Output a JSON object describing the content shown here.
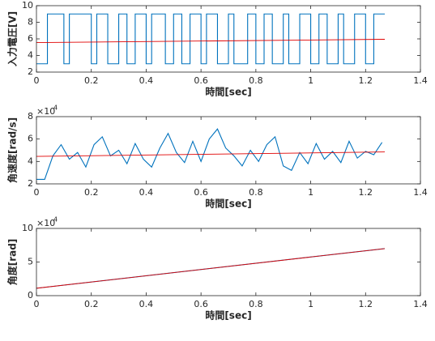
{
  "chart_data": [
    {
      "type": "line",
      "xlabel": "時間[sec]",
      "ylabel": "入力電圧[V]",
      "xlim": [
        0,
        1.4
      ],
      "xticks": [
        0,
        0.2,
        0.4,
        0.6,
        0.8,
        1,
        1.2,
        1.4
      ],
      "ylim": [
        2,
        10
      ],
      "yticks": [
        2,
        4,
        6,
        8,
        10
      ],
      "series": [
        {
          "color": "#0072bd",
          "x": [
            0,
            0.04,
            0.04,
            0.1,
            0.1,
            0.12,
            0.12,
            0.2,
            0.2,
            0.22,
            0.22,
            0.26,
            0.26,
            0.3,
            0.3,
            0.33,
            0.33,
            0.36,
            0.36,
            0.4,
            0.4,
            0.42,
            0.42,
            0.47,
            0.47,
            0.5,
            0.5,
            0.53,
            0.53,
            0.56,
            0.56,
            0.6,
            0.6,
            0.62,
            0.62,
            0.66,
            0.66,
            0.7,
            0.7,
            0.72,
            0.72,
            0.77,
            0.77,
            0.8,
            0.8,
            0.83,
            0.83,
            0.86,
            0.86,
            0.9,
            0.9,
            0.92,
            0.92,
            0.96,
            0.96,
            1.0,
            1.0,
            1.03,
            1.03,
            1.06,
            1.06,
            1.1,
            1.1,
            1.12,
            1.12,
            1.16,
            1.16,
            1.2,
            1.2,
            1.23,
            1.23,
            1.27
          ],
          "values": [
            3,
            3,
            9,
            9,
            3,
            3,
            9,
            9,
            3,
            3,
            9,
            9,
            3,
            3,
            9,
            9,
            3,
            3,
            9,
            9,
            3,
            3,
            9,
            9,
            3,
            3,
            9,
            9,
            3,
            3,
            9,
            9,
            3,
            3,
            9,
            9,
            3,
            3,
            9,
            9,
            3,
            3,
            9,
            9,
            3,
            3,
            9,
            9,
            3,
            3,
            9,
            9,
            3,
            3,
            9,
            9,
            3,
            3,
            9,
            9,
            3,
            3,
            9,
            9,
            3,
            3,
            9,
            9,
            3,
            3,
            9,
            9
          ]
        },
        {
          "color": "#e00000",
          "x": [
            0,
            1.27
          ],
          "values": [
            5.55,
            5.95
          ]
        }
      ]
    },
    {
      "type": "line",
      "xlabel": "時間[sec]",
      "ylabel": "角速度[rad/s]",
      "y_multiplier": {
        "base": "×10",
        "power": "4"
      },
      "xlim": [
        0,
        1.4
      ],
      "xticks": [
        0,
        0.2,
        0.4,
        0.6,
        0.8,
        1,
        1.2,
        1.4
      ],
      "ylim": [
        2,
        8
      ],
      "yticks": [
        2,
        4,
        6,
        8
      ],
      "series": [
        {
          "color": "#0072bd",
          "x": [
            0,
            0.03,
            0.06,
            0.09,
            0.12,
            0.15,
            0.18,
            0.21,
            0.24,
            0.27,
            0.3,
            0.33,
            0.36,
            0.39,
            0.42,
            0.45,
            0.48,
            0.51,
            0.54,
            0.57,
            0.6,
            0.63,
            0.66,
            0.69,
            0.72,
            0.75,
            0.78,
            0.81,
            0.84,
            0.87,
            0.9,
            0.93,
            0.96,
            0.99,
            1.02,
            1.05,
            1.08,
            1.11,
            1.14,
            1.17,
            1.2,
            1.23,
            1.26
          ],
          "values": [
            2.4,
            2.4,
            4.5,
            5.5,
            4.2,
            4.8,
            3.5,
            5.5,
            6.2,
            4.5,
            5.0,
            3.8,
            5.6,
            4.2,
            3.5,
            5.2,
            6.5,
            4.8,
            3.9,
            5.8,
            4.0,
            6.0,
            6.9,
            5.2,
            4.5,
            3.6,
            5.0,
            4.0,
            5.5,
            6.2,
            3.6,
            3.2,
            4.8,
            3.8,
            5.6,
            4.2,
            4.9,
            3.9,
            5.8,
            4.3,
            4.9,
            4.6,
            5.7
          ]
        },
        {
          "color": "#e00000",
          "x": [
            0,
            1.27
          ],
          "values": [
            4.45,
            4.85
          ]
        }
      ]
    },
    {
      "type": "line",
      "xlabel": "時間[sec]",
      "ylabel": "角度[rad]",
      "y_multiplier": {
        "base": "×10",
        "power": "4"
      },
      "xlim": [
        0,
        1.4
      ],
      "xticks": [
        0,
        0.2,
        0.4,
        0.6,
        0.8,
        1,
        1.2,
        1.4
      ],
      "ylim": [
        0,
        10
      ],
      "yticks": [
        0,
        5,
        10
      ],
      "series": [
        {
          "color": "#0072bd",
          "x": [
            0,
            1.27
          ],
          "values": [
            1.1,
            7.0
          ]
        },
        {
          "color": "#e00000",
          "x": [
            0,
            1.27
          ],
          "values": [
            1.1,
            7.0
          ]
        }
      ]
    }
  ]
}
